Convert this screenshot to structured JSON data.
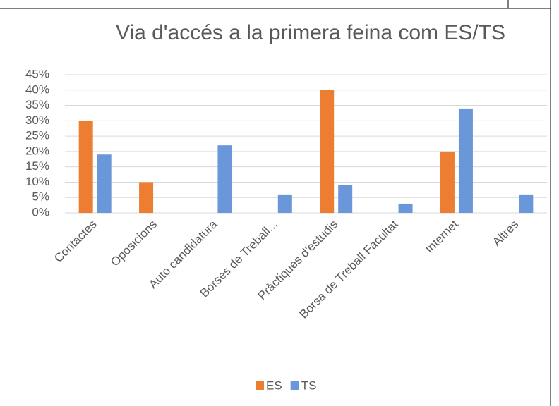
{
  "chart_data": {
    "type": "bar",
    "title": "Via d'accés a la primera feina com ES/TS",
    "categories": [
      "Contactes",
      "Oposicions",
      "Auto candidatura",
      "Borses de Treball...",
      "Pràctiques d'estudis",
      "Borsa de Treball Facultat",
      "Internet",
      "Altres"
    ],
    "series": [
      {
        "name": "ES",
        "color": "#ed7d31",
        "values": [
          30,
          10,
          0,
          0,
          40,
          0,
          20,
          0
        ]
      },
      {
        "name": "TS",
        "color": "#6a97da",
        "values": [
          19,
          0,
          22,
          6,
          9,
          3,
          34,
          6
        ]
      }
    ],
    "ylim": [
      0,
      45
    ],
    "yticks": [
      {
        "value": 0,
        "label": "0%"
      },
      {
        "value": 5,
        "label": "5%"
      },
      {
        "value": 10,
        "label": "10%"
      },
      {
        "value": 15,
        "label": "15%"
      },
      {
        "value": 20,
        "label": "20%"
      },
      {
        "value": 25,
        "label": "25%"
      },
      {
        "value": 30,
        "label": "30%"
      },
      {
        "value": 35,
        "label": "35%"
      },
      {
        "value": 40,
        "label": "40%"
      },
      {
        "value": 45,
        "label": "45%"
      }
    ],
    "grid": true,
    "legend": "bottom"
  }
}
